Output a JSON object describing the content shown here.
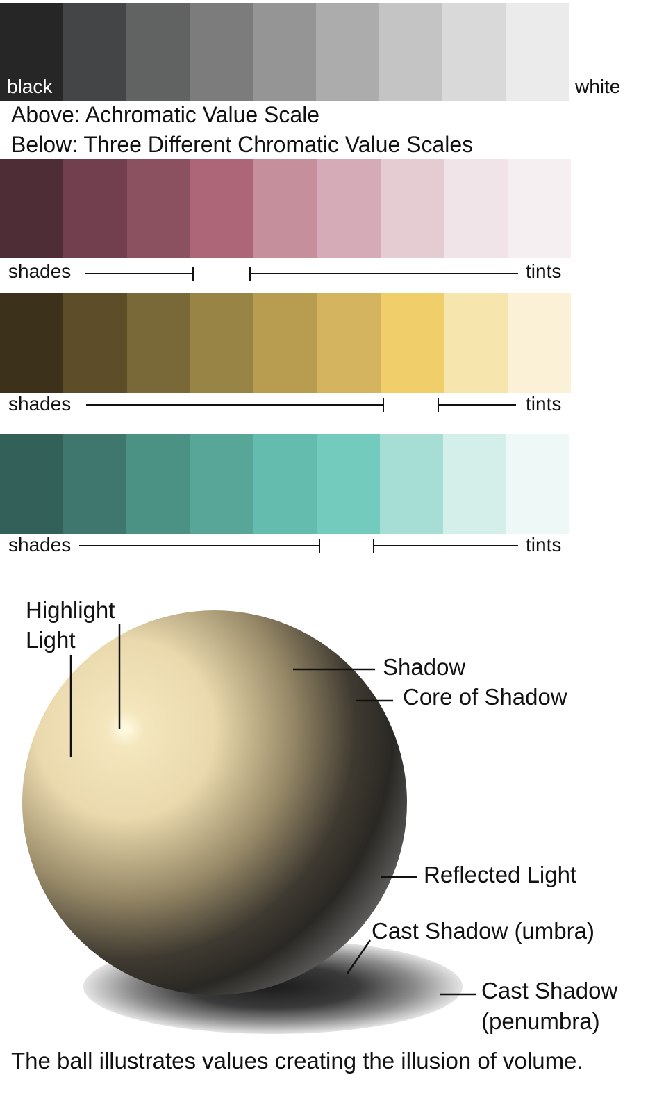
{
  "achromatic": {
    "colors": [
      "#262626",
      "#444546",
      "#616262",
      "#7c7c7c",
      "#959595",
      "#acacac",
      "#c4c4c4",
      "#d9d9d9",
      "#ebebeb",
      "#ffffff"
    ],
    "left_label": "black",
    "right_label": "white"
  },
  "captions": {
    "above": "Above:  Achromatic Value Scale",
    "below": "Below:  Three Different Chromatic Value Scales"
  },
  "scales": [
    {
      "name": "magenta",
      "colors": [
        "#4e2d37",
        "#713f4d",
        "#8c5161",
        "#ad6677",
        "#c68f9c",
        "#d4abb6",
        "#e5ccd3",
        "#f1e4e8",
        "#f6eff1"
      ],
      "shades_label": "shades",
      "tints_label": "tints"
    },
    {
      "name": "ochre",
      "colors": [
        "#3c321b",
        "#5d4d28",
        "#7a6938",
        "#988545",
        "#b89d51",
        "#d4b45e",
        "#f0cf6b",
        "#f6e5ad",
        "#faf1d6"
      ],
      "shades_label": "shades",
      "tints_label": "tints"
    },
    {
      "name": "teal",
      "colors": [
        "#34605a",
        "#3f776f",
        "#4b9184",
        "#58a697",
        "#63bcad",
        "#73cbbd",
        "#a6ddd5",
        "#d4eeea",
        "#eef8f7"
      ],
      "shades_label": "shades",
      "tints_label": "tints"
    }
  ],
  "sphere": {
    "labels": {
      "highlight": "Highlight",
      "light": "Light",
      "shadow": "Shadow",
      "core": "Core of Shadow",
      "reflected": "Reflected Light",
      "umbra": "Cast Shadow (umbra)",
      "penumbra_1": "Cast Shadow",
      "penumbra_2": "(penumbra)"
    },
    "colors": {
      "highlight": "#fffbe4",
      "light": "#ead9ad",
      "mid": "#988a68",
      "shadow": "#3f3a31",
      "core": "#2a2824",
      "reflected": "#6a6a6a"
    }
  },
  "footer": "The ball illustrates values creating the illusion of volume."
}
